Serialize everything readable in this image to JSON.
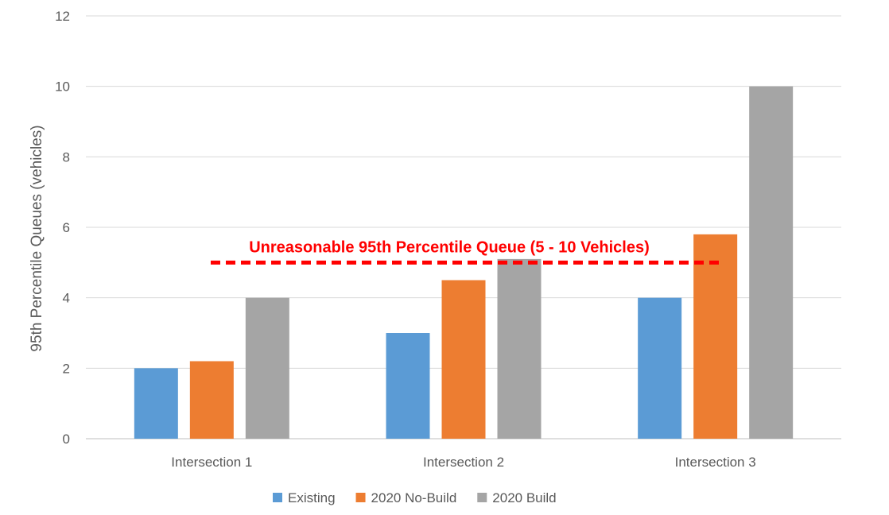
{
  "chart_data": {
    "type": "bar",
    "title": "",
    "xlabel": "",
    "ylabel": "95th Percentile Queues (vehicles)",
    "ylim": [
      0,
      12
    ],
    "yticks": [
      0,
      2,
      4,
      6,
      8,
      10,
      12
    ],
    "grid": true,
    "legend_position": "bottom",
    "categories": [
      "Intersection 1",
      "Intersection 2",
      "Intersection 3"
    ],
    "series": [
      {
        "name": "Existing",
        "color": "#5b9bd5",
        "values": [
          2,
          3,
          4
        ]
      },
      {
        "name": "2020 No-Build",
        "color": "#ed7d31",
        "values": [
          2.2,
          4.5,
          5.8
        ]
      },
      {
        "name": "2020 Build",
        "color": "#a5a5a5",
        "values": [
          4,
          5.1,
          10
        ]
      }
    ],
    "annotation": {
      "text": "Unreasonable 95th Percentile Queue (5 - 10 Vehicles)",
      "y": 5,
      "color": "#ff0000",
      "line_style": "dashed"
    }
  }
}
